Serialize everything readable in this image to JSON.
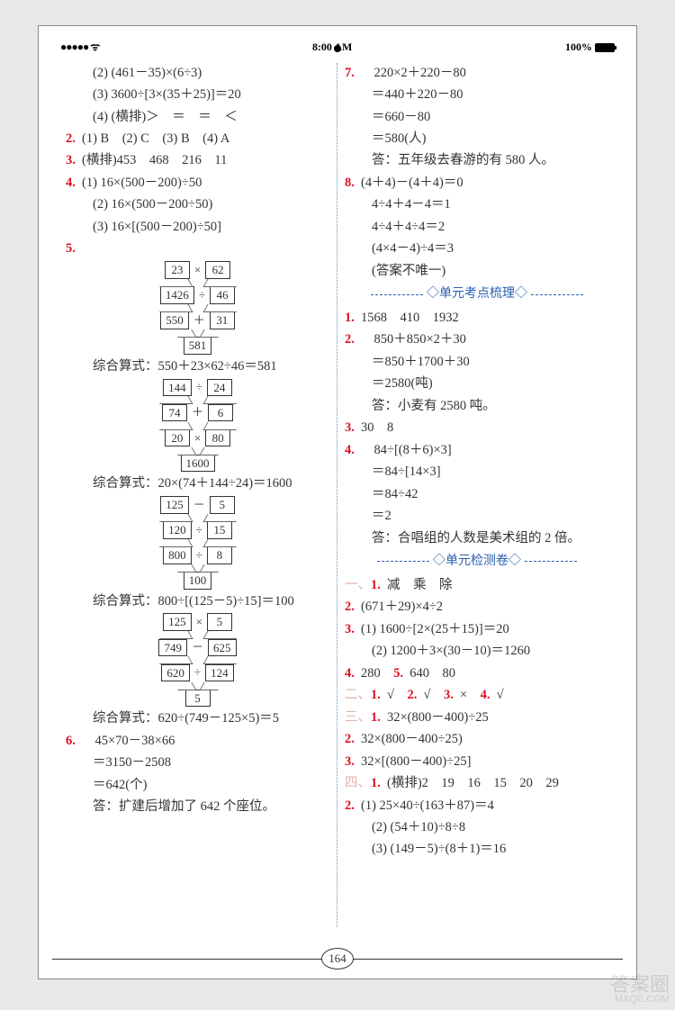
{
  "status": {
    "signal": "●●●●● ᯤ",
    "time": "8:00 AM",
    "battery": "100%"
  },
  "page_number": "164",
  "watermark": {
    "big": "答案圈",
    "small": "MXQE.COM"
  },
  "left_col": [
    {
      "indent": 1,
      "text": "(2) (461－35)×(6÷3)"
    },
    {
      "indent": 1,
      "text": "(3) 3600÷[3×(35＋25)]＝20"
    },
    {
      "indent": 1,
      "text": "(4) (横排)＞　＝　＝　＜"
    },
    {
      "num": "2.",
      "text": "(1) B　(2) C　(3) B　(4) A"
    },
    {
      "num": "3.",
      "text": "(横排)453　468　216　11"
    },
    {
      "num": "4.",
      "text": "(1) 16×(500－200)÷50"
    },
    {
      "indent": 1,
      "text": "(2) 16×(500－200÷50)"
    },
    {
      "indent": 1,
      "text": "(3) 16×[(500－200)÷50]"
    },
    {
      "num": "5.",
      "flow": [
        {
          "a": "23",
          "op": "×",
          "b": "62"
        },
        {
          "a": "1426",
          "op": "÷",
          "b": "46"
        },
        {
          "a": "550",
          "op": "＋",
          "b": "31"
        },
        {
          "res": "581"
        }
      ]
    },
    {
      "indent": 1,
      "text": "综合算式：550＋23×62÷46＝581"
    },
    {
      "flow": [
        {
          "a": "144",
          "op": "÷",
          "b": "24"
        },
        {
          "a": "74",
          "op": "＋",
          "b": "6"
        },
        {
          "a": "20",
          "op": "×",
          "b": "80"
        },
        {
          "res": "1600"
        }
      ]
    },
    {
      "indent": 1,
      "text": "综合算式：20×(74＋144÷24)＝1600"
    },
    {
      "flow": [
        {
          "a": "125",
          "op": "－",
          "b": "5"
        },
        {
          "a": "120",
          "op": "÷",
          "b": "15"
        },
        {
          "a": "800",
          "op": "÷",
          "b": "8"
        },
        {
          "res": "100"
        }
      ]
    },
    {
      "indent": 1,
      "text": "综合算式：800÷[(125－5)÷15]＝100"
    },
    {
      "flow": [
        {
          "a": "125",
          "op": "×",
          "b": "5"
        },
        {
          "a": "749",
          "op": "－",
          "b": "625"
        },
        {
          "a": "620",
          "op": "÷",
          "b": "124"
        },
        {
          "res": "5"
        }
      ]
    },
    {
      "indent": 1,
      "text": "综合算式：620÷(749－125×5)＝5"
    },
    {
      "num": "6.",
      "text": "　45×70－38×66"
    },
    {
      "indent": 1,
      "text": "＝3150－2508"
    },
    {
      "indent": 1,
      "text": "＝642(个)"
    },
    {
      "indent": 1,
      "text": "答：扩建后增加了 642 个座位。"
    }
  ],
  "right_col": [
    {
      "num": "7.",
      "text": "　220×2＋220－80"
    },
    {
      "indent": 1,
      "text": "＝440＋220－80"
    },
    {
      "indent": 1,
      "text": "＝660－80"
    },
    {
      "indent": 1,
      "text": "＝580(人)"
    },
    {
      "indent": 1,
      "text": "答：五年级去春游的有 580 人。"
    },
    {
      "num": "8.",
      "text": "(4＋4)－(4＋4)＝0"
    },
    {
      "indent": 1,
      "text": "4÷4＋4－4＝1"
    },
    {
      "indent": 1,
      "text": "4÷4＋4÷4＝2"
    },
    {
      "indent": 1,
      "text": "(4×4－4)÷4＝3"
    },
    {
      "indent": 1,
      "text": "(答案不唯一)"
    },
    {
      "section": "◇单元考点梳理◇"
    },
    {
      "num": "1.",
      "text": "1568　410　1932"
    },
    {
      "num": "2.",
      "text": "　850＋850×2＋30"
    },
    {
      "indent": 1,
      "text": "＝850＋1700＋30"
    },
    {
      "indent": 1,
      "text": "＝2580(吨)"
    },
    {
      "indent": 1,
      "text": "答：小麦有 2580 吨。"
    },
    {
      "num": "3.",
      "text": "30　8"
    },
    {
      "num": "4.",
      "text": "　84÷[(8＋6)×3]"
    },
    {
      "indent": 1,
      "text": "＝84÷[14×3]"
    },
    {
      "indent": 1,
      "text": "＝84÷42"
    },
    {
      "indent": 1,
      "text": "＝2"
    },
    {
      "indent": 1,
      "text": "答：合唱组的人数是美术组的 2 倍。"
    },
    {
      "section": "◇单元检测卷◇"
    },
    {
      "faded": "一、",
      "num": "1.",
      "text": "减　乘　除"
    },
    {
      "num": "2.",
      "text": "(671＋29)×4÷2"
    },
    {
      "num": "3.",
      "text": "(1) 1600÷[2×(25＋15)]＝20"
    },
    {
      "indent": 1,
      "text": "(2) 1200＋3×(30－10)＝1260"
    },
    {
      "num": "4.",
      "text": "280　",
      "num2": "5.",
      "text2": "640　80"
    },
    {
      "faded": "二、",
      "num": "1.",
      "text": "√　",
      "num2": "2.",
      "text2": "√　",
      "num3": "3.",
      "text3": "×　",
      "num4": "4.",
      "text4": "√"
    },
    {
      "faded": "三、",
      "num": "1.",
      "text": "32×(800－400)÷25"
    },
    {
      "num": "2.",
      "text": "32×(800－400÷25)"
    },
    {
      "num": "3.",
      "text": "32×[(800－400)÷25]"
    },
    {
      "faded": "四、",
      "num": "1.",
      "text": "(横排)2　19　16　15　20　29"
    },
    {
      "num": "2.",
      "text": "(1) 25×40÷(163＋87)＝4"
    },
    {
      "indent": 1,
      "text": "(2) (54＋10)÷8÷8"
    },
    {
      "indent": 1,
      "text": "(3) (149－5)÷(8＋1)＝16"
    }
  ]
}
